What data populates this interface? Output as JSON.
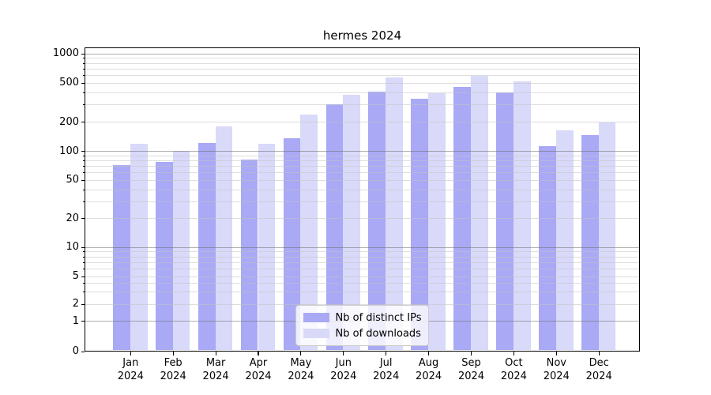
{
  "title": "hermes 2024",
  "chart_data": {
    "type": "bar",
    "title": "hermes 2024",
    "categories": [
      "Jan",
      "Feb",
      "Mar",
      "Apr",
      "May",
      "Jun",
      "Jul",
      "Aug",
      "Sep",
      "Oct",
      "Nov",
      "Dec"
    ],
    "year_label": "2024",
    "series": [
      {
        "name": "Nb of distinct IPs",
        "color": "#a9a9f5",
        "values": [
          71,
          77,
          120,
          82,
          136,
          300,
          410,
          345,
          455,
          400,
          112,
          146
        ]
      },
      {
        "name": "Nb of downloads",
        "color": "#d9d9fa",
        "values": [
          118,
          100,
          178,
          119,
          235,
          380,
          570,
          395,
          590,
          515,
          162,
          196
        ]
      }
    ],
    "yscale": "symlog",
    "y_tick_labels": [
      "0",
      "1",
      "2",
      "5",
      "10",
      "20",
      "50",
      "100",
      "200",
      "500",
      "1000"
    ],
    "y_tick_values": [
      0,
      1,
      2,
      5,
      10,
      20,
      50,
      100,
      200,
      500,
      1000
    ],
    "ylim": [
      0,
      1200
    ],
    "grid": true,
    "legend_position": "lower center",
    "legend_items": [
      "Nb of distinct IPs",
      "Nb of downloads"
    ]
  }
}
